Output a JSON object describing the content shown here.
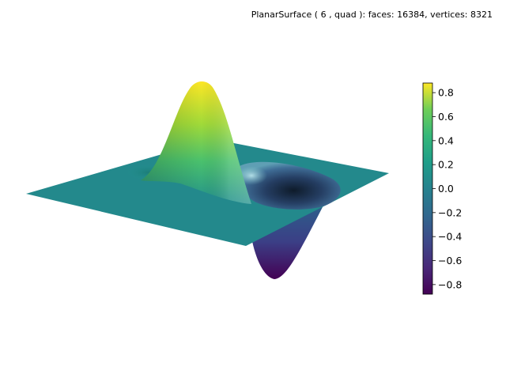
{
  "title": "PlanarSurface ( 6 , quad ):  faces: 16384,  vertices: 8321",
  "chart_data": {
    "type": "surface3d",
    "title": "PlanarSurface ( 6 , quad ):  faces: 16384,  vertices: 8321",
    "surface": "planar grid displaced by a positive peak and a negative trough",
    "z_range": [
      -0.88,
      0.88
    ],
    "peak_value": 0.88,
    "trough_value": -0.88,
    "colormap": "viridis",
    "colorbar": {
      "ticks": [
        0.8,
        0.6,
        0.4,
        0.2,
        0.0,
        -0.2,
        -0.4,
        -0.6,
        -0.8
      ],
      "tick_labels": [
        "0.8",
        "0.6",
        "0.4",
        "0.2",
        "0.0",
        "−0.2",
        "−0.4",
        "−0.6",
        "−0.8"
      ],
      "range": [
        -0.88,
        0.88
      ],
      "placement": "right"
    },
    "axes_visible": false,
    "grid": false
  }
}
